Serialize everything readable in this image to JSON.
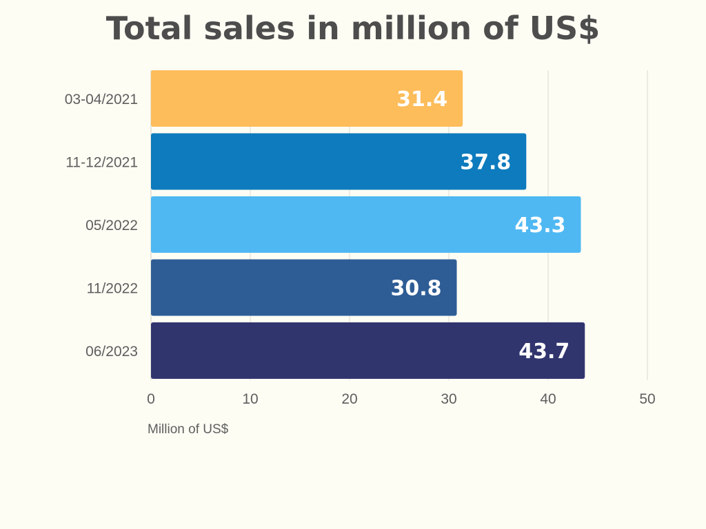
{
  "chart_data": {
    "type": "bar",
    "orientation": "horizontal",
    "title": "Total sales in million of US$",
    "xlabel": "Million of US$",
    "ylabel": "",
    "categories": [
      "03-04/2021",
      "11-12/2021",
      "05/2022",
      "11/2022",
      "06/2023"
    ],
    "values": [
      31.4,
      37.8,
      43.3,
      30.8,
      43.7
    ],
    "value_labels": [
      "31.4",
      "37.8",
      "43.3",
      "30.8",
      "43.7"
    ],
    "bar_colors": [
      "#fdbd5b",
      "#0d7bbd",
      "#4fb8f3",
      "#2e5d96",
      "#31356e"
    ],
    "xlim": [
      0,
      50
    ],
    "xticks": [
      "0",
      "10",
      "20",
      "30",
      "40",
      "50"
    ],
    "grid": true,
    "legend": "none"
  }
}
